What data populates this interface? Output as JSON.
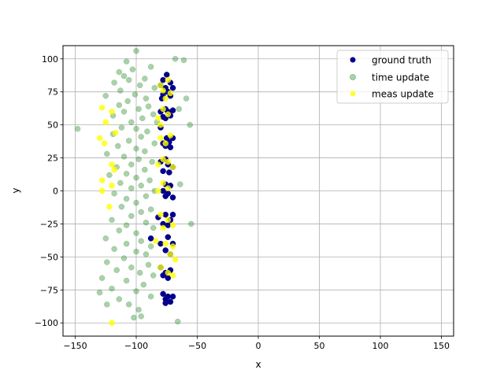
{
  "chart_data": {
    "type": "scatter",
    "xlabel": "x",
    "ylabel": "y",
    "xlim": [
      -160,
      160
    ],
    "ylim": [
      -110,
      110
    ],
    "x_ticks": [
      -150,
      -100,
      -50,
      0,
      50,
      100,
      150
    ],
    "y_ticks": [
      -100,
      -75,
      -50,
      -25,
      0,
      25,
      50,
      75,
      100
    ],
    "grid": true,
    "legend_position": "top-right",
    "series": [
      {
        "name": "ground truth",
        "color": "#00008b",
        "alpha": 1.0,
        "points": [
          [
            -75,
            88
          ],
          [
            -78,
            84
          ],
          [
            -72,
            82
          ],
          [
            -80,
            80
          ],
          [
            -76,
            78
          ],
          [
            -70,
            78
          ],
          [
            -74,
            75
          ],
          [
            -78,
            73
          ],
          [
            -72,
            72
          ],
          [
            -79,
            70
          ],
          [
            -76,
            62
          ],
          [
            -80,
            60
          ],
          [
            -74,
            60
          ],
          [
            -70,
            61
          ],
          [
            -78,
            56
          ],
          [
            -72,
            57
          ],
          [
            -76,
            55
          ],
          [
            -80,
            48
          ],
          [
            -75,
            40
          ],
          [
            -70,
            40
          ],
          [
            -78,
            36
          ],
          [
            -73,
            37
          ],
          [
            -76,
            34
          ],
          [
            -72,
            33
          ],
          [
            -80,
            22
          ],
          [
            -76,
            24
          ],
          [
            -74,
            20
          ],
          [
            -70,
            18
          ],
          [
            -78,
            15
          ],
          [
            -73,
            14
          ],
          [
            -76,
            5
          ],
          [
            -72,
            4
          ],
          [
            -78,
            0
          ],
          [
            -74,
            -2
          ],
          [
            -70,
            -5
          ],
          [
            -76,
            -4
          ],
          [
            -82,
            -20
          ],
          [
            -76,
            -18
          ],
          [
            -72,
            -22
          ],
          [
            -78,
            -25
          ],
          [
            -70,
            -18
          ],
          [
            -74,
            -26
          ],
          [
            -88,
            -36
          ],
          [
            -80,
            -40
          ],
          [
            -74,
            -35
          ],
          [
            -70,
            -40
          ],
          [
            -76,
            -45
          ],
          [
            -72,
            -48
          ],
          [
            -80,
            -58
          ],
          [
            -76,
            -62
          ],
          [
            -72,
            -60
          ],
          [
            -78,
            -64
          ],
          [
            -74,
            -66
          ],
          [
            -78,
            -78
          ],
          [
            -74,
            -80
          ],
          [
            -72,
            -84
          ],
          [
            -76,
            -85
          ],
          [
            -70,
            -80
          ],
          [
            -76,
            -82
          ]
        ]
      },
      {
        "name": "time update",
        "color": "#2e8b2e",
        "alpha": 0.4,
        "points": [
          [
            -100,
            106
          ],
          [
            -68,
            100
          ],
          [
            -61,
            99
          ],
          [
            -108,
            98
          ],
          [
            -88,
            94
          ],
          [
            -103,
            92
          ],
          [
            -114,
            90
          ],
          [
            -110,
            87
          ],
          [
            -93,
            85
          ],
          [
            -106,
            84
          ],
          [
            -118,
            82
          ],
          [
            -97,
            80
          ],
          [
            -85,
            78
          ],
          [
            -113,
            76
          ],
          [
            -125,
            72
          ],
          [
            -101,
            73
          ],
          [
            -92,
            70
          ],
          [
            -107,
            68
          ],
          [
            -114,
            65
          ],
          [
            -59,
            70
          ],
          [
            -90,
            64
          ],
          [
            -98,
            62
          ],
          [
            -110,
            60
          ],
          [
            -86,
            58
          ],
          [
            -119,
            57
          ],
          [
            -95,
            55
          ],
          [
            -104,
            52
          ],
          [
            -65,
            62
          ],
          [
            -83,
            52
          ],
          [
            -112,
            48
          ],
          [
            -100,
            47
          ],
          [
            -56,
            50
          ],
          [
            -91,
            45
          ],
          [
            -119,
            43
          ],
          [
            -96,
            41
          ],
          [
            -106,
            38
          ],
          [
            -85,
            36
          ],
          [
            -115,
            34
          ],
          [
            -100,
            32
          ],
          [
            -93,
            30
          ],
          [
            -124,
            28
          ],
          [
            -110,
            26
          ],
          [
            -98,
            24
          ],
          [
            -87,
            22
          ],
          [
            -104,
            20
          ],
          [
            -116,
            18
          ],
          [
            -93,
            16
          ],
          [
            -108,
            13
          ],
          [
            -122,
            12
          ],
          [
            -100,
            10
          ],
          [
            -89,
            8
          ],
          [
            -113,
            6
          ],
          [
            -96,
            4
          ],
          [
            -104,
            2
          ],
          [
            -85,
            0
          ],
          [
            -118,
            -2
          ],
          [
            -92,
            -4
          ],
          [
            -108,
            -6
          ],
          [
            -100,
            -9
          ],
          [
            -64,
            5
          ],
          [
            -112,
            -12
          ],
          [
            -88,
            -14
          ],
          [
            -96,
            -16
          ],
          [
            -104,
            -19
          ],
          [
            -120,
            -22
          ],
          [
            -92,
            -24
          ],
          [
            -108,
            -26
          ],
          [
            -86,
            -28
          ],
          [
            -114,
            -30
          ],
          [
            -100,
            -32
          ],
          [
            -55,
            -25
          ],
          [
            -125,
            -36
          ],
          [
            -96,
            -38
          ],
          [
            -108,
            -40
          ],
          [
            -88,
            -42
          ],
          [
            -118,
            -44
          ],
          [
            -100,
            -46
          ],
          [
            -92,
            -48
          ],
          [
            -110,
            -51
          ],
          [
            -124,
            -54
          ],
          [
            -90,
            -56
          ],
          [
            -104,
            -58
          ],
          [
            -116,
            -60
          ],
          [
            -97,
            -62
          ],
          [
            -86,
            -64
          ],
          [
            -128,
            -66
          ],
          [
            -108,
            -68
          ],
          [
            -94,
            -71
          ],
          [
            -120,
            -74
          ],
          [
            -100,
            -76
          ],
          [
            -88,
            -80
          ],
          [
            -130,
            -77
          ],
          [
            -114,
            -82
          ],
          [
            -106,
            -86
          ],
          [
            -124,
            -86
          ],
          [
            -98,
            -90
          ],
          [
            -96,
            -95
          ],
          [
            -102,
            -96
          ],
          [
            -66,
            -99
          ],
          [
            -148,
            47
          ]
        ]
      },
      {
        "name": "meas update",
        "color": "#ffff00",
        "alpha": 0.8,
        "points": [
          [
            -74,
            84
          ],
          [
            -80,
            80
          ],
          [
            -78,
            76
          ],
          [
            -72,
            74
          ],
          [
            -76,
            70
          ],
          [
            -128,
            63
          ],
          [
            -120,
            60
          ],
          [
            -78,
            62
          ],
          [
            -74,
            58
          ],
          [
            -82,
            55
          ],
          [
            -125,
            52
          ],
          [
            -80,
            50
          ],
          [
            -117,
            44
          ],
          [
            -130,
            40
          ],
          [
            -126,
            36
          ],
          [
            -80,
            40
          ],
          [
            -72,
            42
          ],
          [
            -76,
            36
          ],
          [
            -78,
            24
          ],
          [
            -74,
            22
          ],
          [
            -82,
            20
          ],
          [
            -70,
            18
          ],
          [
            -120,
            20
          ],
          [
            -118,
            16
          ],
          [
            -128,
            8
          ],
          [
            -120,
            4
          ],
          [
            -78,
            6
          ],
          [
            -74,
            2
          ],
          [
            -82,
            0
          ],
          [
            -128,
            0
          ],
          [
            -122,
            -12
          ],
          [
            -80,
            -18
          ],
          [
            -74,
            -22
          ],
          [
            -70,
            -26
          ],
          [
            -78,
            -28
          ],
          [
            -84,
            -38
          ],
          [
            -76,
            -40
          ],
          [
            -70,
            -42
          ],
          [
            -72,
            -48
          ],
          [
            -68,
            -52
          ],
          [
            -80,
            -58
          ],
          [
            -74,
            -62
          ],
          [
            -70,
            -64
          ],
          [
            -120,
            -100
          ]
        ]
      }
    ]
  }
}
